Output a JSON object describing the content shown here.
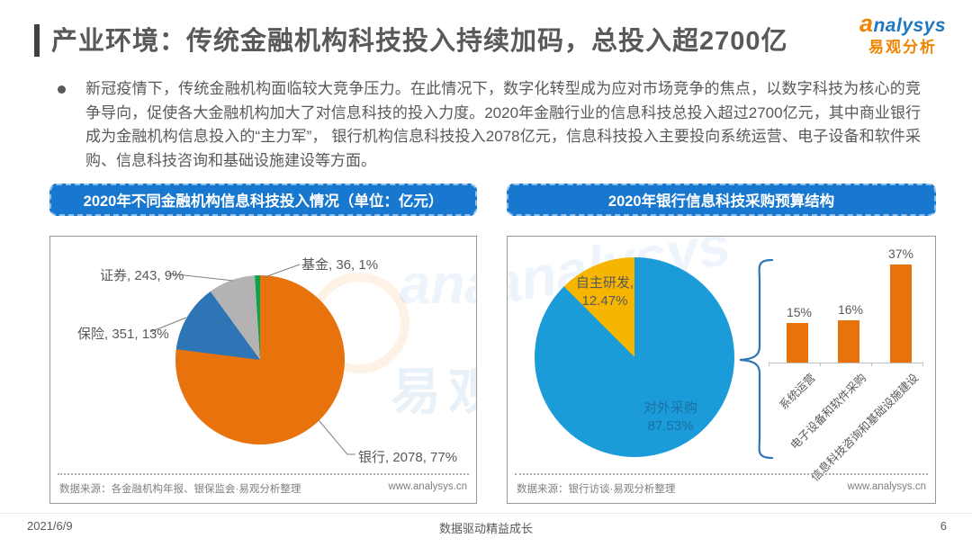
{
  "header": {
    "title": "产业环境：传统金融机构科技投入持续加码，总投入超2700亿",
    "logo": {
      "brand_en": "analysys",
      "brand_cn": "易观分析"
    }
  },
  "intro": {
    "text": "新冠疫情下，传统金融机构面临较大竞争压力。在此情况下，数字化转型成为应对市场竞争的焦点，以数字科技为核心的竞争导向，促使各大金融机构加大了对信息科技的投入力度。2020年金融行业的信息科技总投入超过2700亿元，其中商业银行成为金融机构信息投入的“主力军”， 银行机构信息科技投入2078亿元，信息科技投入主要投向系统运营、电子设备和软件采购、信息科技咨询和基础设施建设等方面。"
  },
  "watermark": {
    "en": "analysys",
    "cn": "易观"
  },
  "chart_data": [
    {
      "type": "pie",
      "title": "2020年不同金融机构信息科技投入情况（单位：亿元）",
      "unit": "亿元",
      "slices": [
        {
          "label": "银行",
          "value": 2078,
          "pct": 77,
          "color": "#E8720C",
          "label_text": "银行, 2078, 77%"
        },
        {
          "label": "保险",
          "value": 351,
          "pct": 13,
          "color": "#2E75B6",
          "label_text": "保险, 351, 13%"
        },
        {
          "label": "证券",
          "value": 243,
          "pct": 9,
          "color": "#B3B3B3",
          "label_text": "证券, 243, 9%"
        },
        {
          "label": "基金",
          "value": 36,
          "pct": 1,
          "color": "#0BA350",
          "label_text": "基金, 36, 1%"
        }
      ],
      "legend_position": "none",
      "source": "数据来源：各金融机构年报、银保监会·易观分析整理",
      "website": "www.analysys.cn"
    },
    {
      "type": "pie+bar",
      "title": "2020年银行信息科技采购预算结构",
      "slices": [
        {
          "label": "对外采购",
          "pct": 87.53,
          "color": "#1B9CD8",
          "label_line1": "对外采购",
          "label_line2": "87.53%"
        },
        {
          "label": "自主研发",
          "pct": 12.47,
          "color": "#F6B500",
          "label_line1": "自主研发,",
          "label_line2": "12.47%"
        }
      ],
      "bars": {
        "categories": [
          "系统运营",
          "电子设备和软件采购",
          "信息科技咨询和基础设施建设"
        ],
        "values": [
          15,
          16,
          37
        ],
        "value_labels": [
          "15%",
          "16%",
          "37%"
        ],
        "color": "#E8720C"
      },
      "source": "数据来源：银行访谈·易观分析整理",
      "website": "www.analysys.cn"
    }
  ],
  "page_footer": {
    "date": "2021/6/9",
    "slogan": "数据驱动精益成长",
    "page_number": "6"
  }
}
